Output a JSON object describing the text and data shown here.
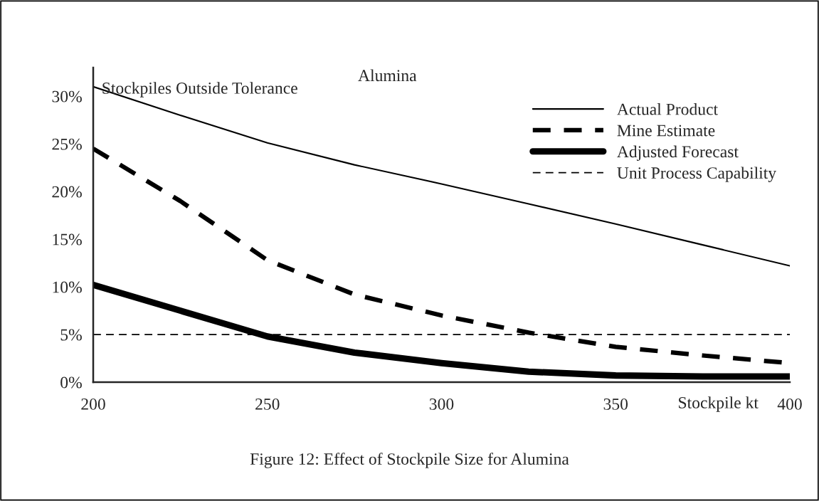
{
  "chart_data": {
    "type": "line",
    "title": "Alumina",
    "xlabel": "Stockpile kt",
    "ylabel": "Stockpiles Outside Tolerance",
    "x": [
      200,
      225,
      250,
      275,
      300,
      325,
      350,
      375,
      400
    ],
    "series": [
      {
        "name": "Actual Product",
        "color": "#000000",
        "line_style": "solid",
        "values": [
          31,
          28,
          25.1,
          22.8,
          20.8,
          18.7,
          16.6,
          14.4,
          12.2
        ]
      },
      {
        "name": "Mine Estimate",
        "color": "#000000",
        "line_style": "dashed",
        "values": [
          24.5,
          19,
          12.8,
          9.2,
          7,
          5.2,
          3.7,
          2.8,
          2
        ]
      },
      {
        "name": "Adjusted Forecast",
        "color": "#000000",
        "line_style": "solid",
        "values": [
          10.2,
          7.5,
          4.8,
          3.1,
          2,
          1.1,
          0.7,
          0.6,
          0.6
        ]
      },
      {
        "name": "Unit Process Capability",
        "color": "#000000",
        "line_style": "dashed",
        "x": [
          200,
          400
        ],
        "values": [
          5,
          5
        ]
      }
    ],
    "xlim": [
      200,
      400
    ],
    "xticks": [
      200,
      250,
      300,
      350,
      400
    ],
    "ylim": [
      0,
      33
    ],
    "yticks": [
      {
        "value": 0,
        "label": "0%"
      },
      {
        "value": 5,
        "label": "5%"
      },
      {
        "value": 10,
        "label": "10%"
      },
      {
        "value": 15,
        "label": "15%"
      },
      {
        "value": 20,
        "label": "20%"
      },
      {
        "value": 25,
        "label": "25%"
      },
      {
        "value": 30,
        "label": "30%"
      }
    ],
    "grid": false,
    "legend": "top right",
    "marker": "none",
    "annotations": [
      "Figure 12: Effect of Stockpile Size for Alumina"
    ]
  }
}
